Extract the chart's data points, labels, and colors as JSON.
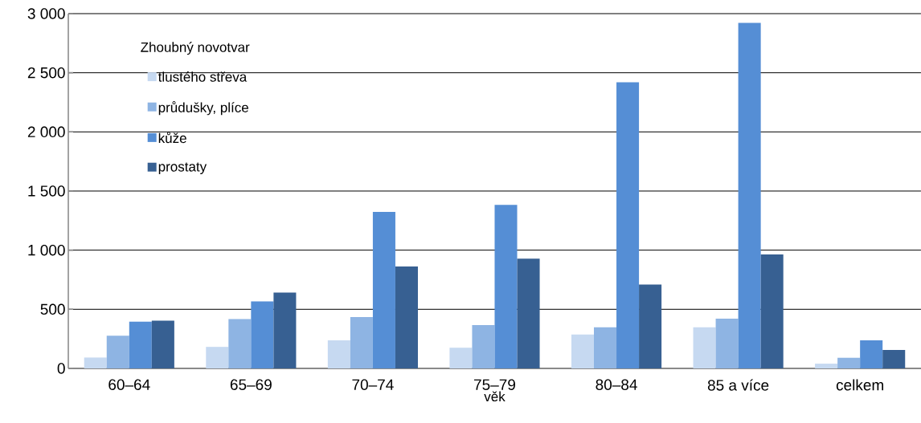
{
  "chart_data": {
    "type": "bar",
    "xlabel": "věk",
    "legend_title": "Zhoubný novotvar",
    "categories": [
      "60–64",
      "65–69",
      "70–74",
      "75–79",
      "80–84",
      "85 a více",
      "celkem"
    ],
    "series": [
      {
        "name": "tlustého střeva",
        "color": "#c6d9f1",
        "values": [
          92,
          182,
          237,
          175,
          286,
          347,
          40
        ]
      },
      {
        "name": "průdušky, plíce",
        "color": "#8eb4e3",
        "values": [
          277,
          417,
          435,
          367,
          347,
          420,
          90
        ]
      },
      {
        "name": "kůže",
        "color": "#558ed5",
        "values": [
          396,
          566,
          1323,
          1383,
          2419,
          2922,
          238
        ]
      },
      {
        "name": "prostaty",
        "color": "#376092",
        "values": [
          403,
          642,
          862,
          928,
          710,
          963,
          156
        ]
      }
    ],
    "ylim": [
      0,
      3000
    ],
    "yticks": [
      0,
      500,
      {
        "value": 1000,
        "label": "1 000"
      },
      {
        "value": 1500,
        "label": "1 500"
      },
      {
        "value": 2000,
        "label": "2 000"
      },
      {
        "value": 2500,
        "label": "2 500"
      },
      {
        "value": 3000,
        "label": "3 000"
      }
    ],
    "grid": "y",
    "legend": "top left"
  }
}
